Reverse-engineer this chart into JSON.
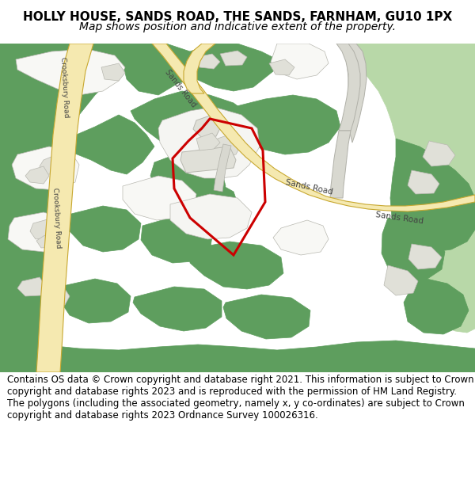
{
  "title": "HOLLY HOUSE, SANDS ROAD, THE SANDS, FARNHAM, GU10 1PX",
  "subtitle": "Map shows position and indicative extent of the property.",
  "footer": "Contains OS data © Crown copyright and database right 2021. This information is subject to Crown copyright and database rights 2023 and is reproduced with the permission of HM Land Registry. The polygons (including the associated geometry, namely x, y co-ordinates) are subject to Crown copyright and database rights 2023 Ordnance Survey 100026316.",
  "bg_color": "#ffffff",
  "green_color": "#5e9e5e",
  "light_green_color": "#b8d8a8",
  "road_yellow_fill": "#f5e9b0",
  "road_yellow_edge": "#c8a830",
  "road_gray_fill": "#d8d8d0",
  "road_gray_edge": "#b0b0a8",
  "building_fill": "#e0e0d8",
  "building_edge": "#b8b8b0",
  "red_outline": "#cc0000",
  "title_fontsize": 11,
  "subtitle_fontsize": 10,
  "footer_fontsize": 8.5,
  "road_label_fontsize": 7.5,
  "label_color": "#444444"
}
